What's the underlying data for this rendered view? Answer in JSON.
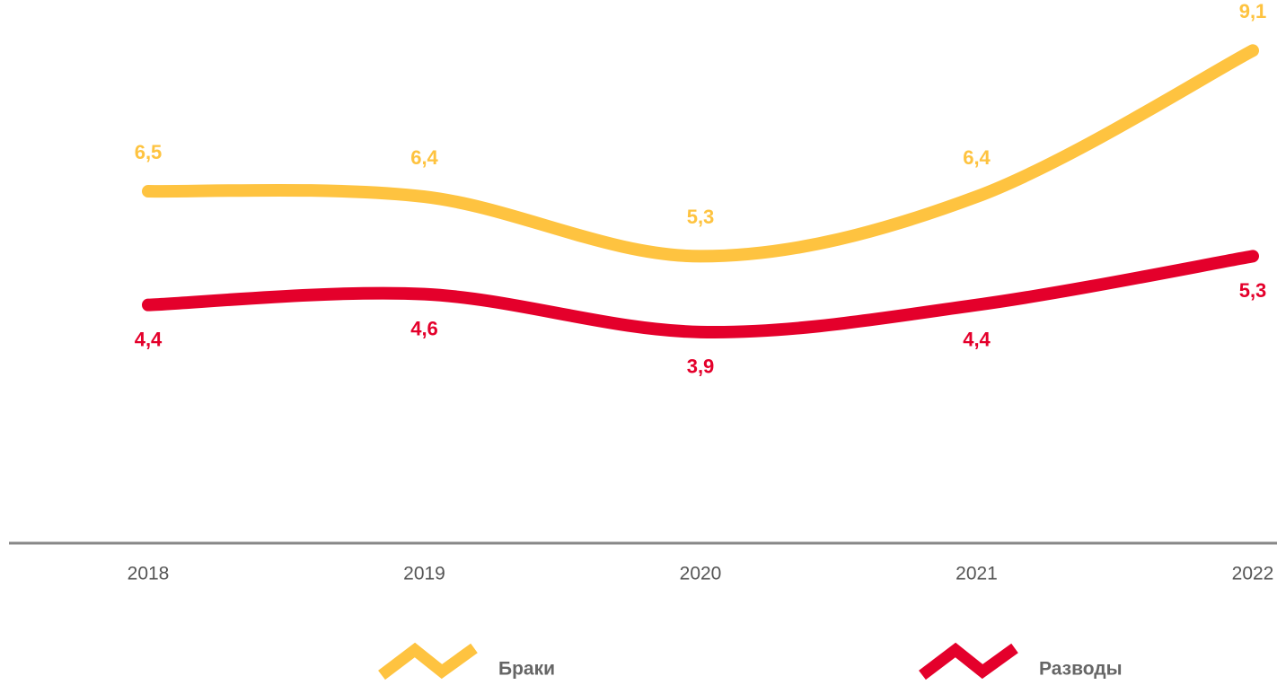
{
  "chart_data": {
    "type": "line",
    "categories": [
      "2018",
      "2019",
      "2020",
      "2021",
      "2022"
    ],
    "ylim": [
      0,
      10
    ],
    "series": [
      {
        "name": "Браки",
        "color": "#fec340",
        "values": [
          6.5,
          6.4,
          5.3,
          6.4,
          9.1
        ],
        "value_labels": [
          "6,5",
          "6,4",
          "5,3",
          "6,4",
          "9,1"
        ]
      },
      {
        "name": "Разводы",
        "color": "#e4002b",
        "values": [
          4.4,
          4.6,
          3.9,
          4.4,
          5.3
        ],
        "value_labels": [
          "4,4",
          "4,6",
          "3,9",
          "4,4",
          "5,3"
        ]
      }
    ]
  }
}
